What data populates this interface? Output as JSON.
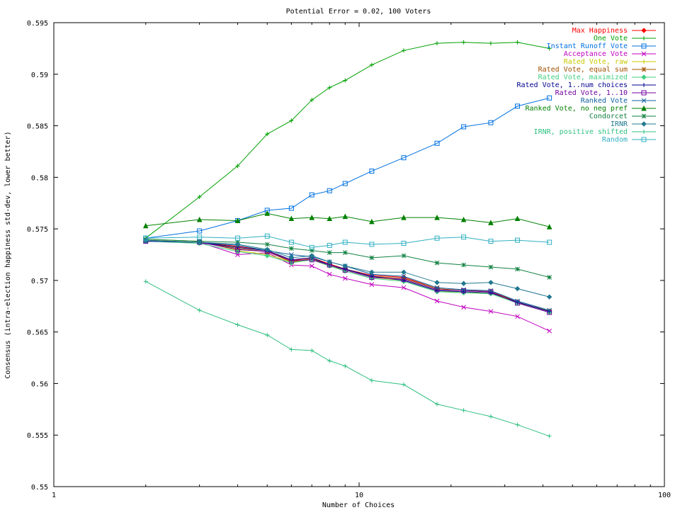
{
  "chart_data": {
    "type": "line",
    "title": "Potential Error = 0.02, 100 Voters",
    "xlabel": "Number of Choices",
    "ylabel": "Consensus (intra-election happiness std-dev, lower better)",
    "xscale": "log",
    "xlim": [
      1,
      100
    ],
    "ylim": [
      0.55,
      0.595
    ],
    "xticks": [
      1,
      10,
      100
    ],
    "xtick_labels": [
      "1",
      "10",
      "100"
    ],
    "yticks": [
      0.55,
      0.555,
      0.56,
      0.565,
      0.57,
      0.575,
      0.58,
      0.585,
      0.59,
      0.595
    ],
    "ytick_labels": [
      "0.55",
      "0.555",
      "0.56",
      "0.565",
      "0.57",
      "0.575",
      "0.58",
      "0.585",
      "0.59",
      "0.595"
    ],
    "grid": false,
    "legend_position": "top-right",
    "x": [
      2,
      3,
      4,
      5,
      6,
      7,
      8,
      9,
      11,
      14,
      18,
      22,
      27,
      33,
      42
    ],
    "series": [
      {
        "name": "Max Happiness",
        "color": "#ff0000",
        "marker": "diamond",
        "values": [
          0.5738,
          0.5737,
          0.5733,
          0.5729,
          0.5719,
          0.5722,
          0.5716,
          0.5711,
          0.5705,
          0.5703,
          0.5692,
          0.569,
          0.5689,
          0.5679,
          0.567
        ]
      },
      {
        "name": "One Vote",
        "color": "#00a000",
        "marker": "plus",
        "values": [
          0.5741,
          0.5781,
          0.5811,
          0.5842,
          0.5855,
          0.5875,
          0.5887,
          0.5894,
          0.5909,
          0.5923,
          0.593,
          0.5931,
          0.593,
          0.5931,
          0.5925
        ]
      },
      {
        "name": "Instant Runoff Vote",
        "color": "#0070e0",
        "marker": "square",
        "values": [
          0.5741,
          0.5748,
          0.5758,
          0.5768,
          0.577,
          0.5783,
          0.5787,
          0.5794,
          0.5806,
          0.5819,
          0.5833,
          0.5849,
          0.5853,
          0.5869,
          0.5877
        ]
      },
      {
        "name": "Acceptance Vote",
        "color": "#c000c0",
        "marker": "x",
        "values": [
          0.5738,
          0.5737,
          0.5725,
          0.5727,
          0.5715,
          0.5714,
          0.5706,
          0.5702,
          0.5696,
          0.5693,
          0.568,
          0.5674,
          0.567,
          0.5665,
          0.5651
        ]
      },
      {
        "name": "Rated Vote, raw",
        "color": "#c8c800",
        "marker": "plus",
        "values": [
          0.574,
          0.5738,
          0.5729,
          0.5725,
          0.5718,
          0.572,
          0.5714,
          0.571,
          0.5703,
          0.57,
          0.569,
          0.5688,
          0.5688,
          0.5678,
          0.5671
        ]
      },
      {
        "name": "Rated Vote, equal sum",
        "color": "#a05000",
        "marker": "star",
        "values": [
          0.5739,
          0.5737,
          0.5731,
          0.5728,
          0.5718,
          0.5721,
          0.5715,
          0.5711,
          0.5704,
          0.5702,
          0.5692,
          0.569,
          0.569,
          0.5679,
          0.567
        ]
      },
      {
        "name": "Rated Vote, maximized",
        "color": "#40d080",
        "marker": "diamond",
        "values": [
          0.5738,
          0.5736,
          0.5728,
          0.5724,
          0.5717,
          0.572,
          0.5714,
          0.5709,
          0.5702,
          0.5699,
          0.5689,
          0.5688,
          0.5687,
          0.5678,
          0.5669
        ]
      },
      {
        "name": "Rated Vote, 1..num choices",
        "color": "#000090",
        "marker": "plus",
        "values": [
          0.5738,
          0.5737,
          0.5732,
          0.5729,
          0.572,
          0.5722,
          0.5715,
          0.5711,
          0.5704,
          0.57,
          0.569,
          0.5689,
          0.5688,
          0.5679,
          0.567
        ]
      },
      {
        "name": "Rated Vote, 1..10",
        "color": "#7000a0",
        "marker": "square",
        "values": [
          0.5738,
          0.5737,
          0.573,
          0.5728,
          0.5719,
          0.572,
          0.5715,
          0.571,
          0.5703,
          0.5701,
          0.5691,
          0.569,
          0.5689,
          0.5678,
          0.5669
        ]
      },
      {
        "name": "Ranked Vote",
        "color": "#1060a0",
        "marker": "x",
        "values": [
          0.5738,
          0.5737,
          0.5734,
          0.5729,
          0.5725,
          0.5723,
          0.5718,
          0.5714,
          0.5706,
          0.5704,
          0.5693,
          0.5691,
          0.569,
          0.568,
          0.5671
        ]
      },
      {
        "name": "Ranked Vote, no neg pref",
        "color": "#008000",
        "marker": "triangle",
        "values": [
          0.5753,
          0.5759,
          0.5758,
          0.5765,
          0.576,
          0.5761,
          0.576,
          0.5762,
          0.5757,
          0.5761,
          0.5761,
          0.5759,
          0.5756,
          0.576,
          0.5752
        ]
      },
      {
        "name": "Condorcet",
        "color": "#108040",
        "marker": "star",
        "values": [
          0.574,
          0.5738,
          0.5737,
          0.5735,
          0.5731,
          0.5729,
          0.5727,
          0.5727,
          0.5722,
          0.5724,
          0.5717,
          0.5715,
          0.5713,
          0.5711,
          0.5703
        ]
      },
      {
        "name": "IRNR",
        "color": "#207890",
        "marker": "diamond",
        "values": [
          0.5739,
          0.5737,
          0.5735,
          0.573,
          0.5722,
          0.5724,
          0.5718,
          0.5714,
          0.5708,
          0.5708,
          0.5698,
          0.5697,
          0.5698,
          0.5692,
          0.5684
        ]
      },
      {
        "name": "IRNR, positive shifted",
        "color": "#30c080",
        "marker": "plus",
        "values": [
          0.5699,
          0.5671,
          0.5657,
          0.5647,
          0.5633,
          0.5632,
          0.5622,
          0.5617,
          0.5603,
          0.5599,
          0.558,
          0.5574,
          0.5568,
          0.556,
          0.5549
        ]
      },
      {
        "name": "Random",
        "color": "#30b0c0",
        "marker": "square",
        "values": [
          0.5741,
          0.5742,
          0.5741,
          0.5743,
          0.5737,
          0.5732,
          0.5734,
          0.5737,
          0.5735,
          0.5736,
          0.5741,
          0.5742,
          0.5738,
          0.5739,
          0.5737
        ]
      }
    ]
  }
}
